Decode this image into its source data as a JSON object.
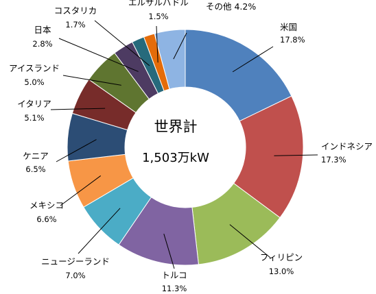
{
  "chart_data": {
    "type": "pie",
    "variant": "donut",
    "center_label_line1": "世界計",
    "center_label_line2": "1,503万kW",
    "slices": [
      {
        "name": "米国",
        "percent_label": "17.8%",
        "value": 17.8,
        "color": "#4F81BD"
      },
      {
        "name": "インドネシア",
        "percent_label": "17.3%",
        "value": 17.3,
        "color": "#C0504D"
      },
      {
        "name": "フィリピン",
        "percent_label": "13.0%",
        "value": 13.0,
        "color": "#9BBB59"
      },
      {
        "name": "トルコ",
        "percent_label": "11.3%",
        "value": 11.3,
        "color": "#8064A2"
      },
      {
        "name": "ニュージーランド",
        "percent_label": "7.0%",
        "value": 7.0,
        "color": "#4BACC6"
      },
      {
        "name": "メキシコ",
        "percent_label": "6.6%",
        "value": 6.6,
        "color": "#F79646"
      },
      {
        "name": "ケニア",
        "percent_label": "6.5%",
        "value": 6.5,
        "color": "#2C4D75"
      },
      {
        "name": "イタリア",
        "percent_label": "5.1%",
        "value": 5.1,
        "color": "#772C2A"
      },
      {
        "name": "アイスランド",
        "percent_label": "5.0%",
        "value": 5.0,
        "color": "#5F7530"
      },
      {
        "name": "日本",
        "percent_label": "2.8%",
        "value": 2.8,
        "color": "#4D3B62"
      },
      {
        "name": "コスタリカ",
        "percent_label": "1.7%",
        "value": 1.7,
        "color": "#276A7C"
      },
      {
        "name": "エルサルバドル",
        "percent_label": "1.5%",
        "value": 1.5,
        "color": "#E46C0A"
      },
      {
        "name": "その他",
        "percent_label": "4.2%",
        "value": 4.2,
        "color": "#8EB4E3"
      }
    ]
  }
}
